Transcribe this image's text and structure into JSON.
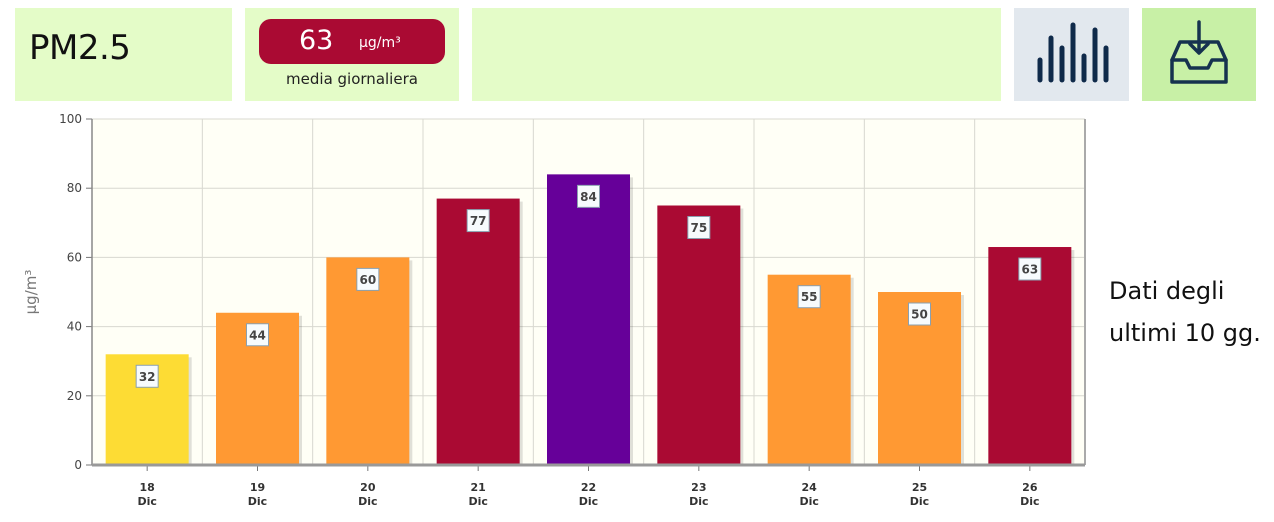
{
  "header": {
    "pollutant": "PM2.5",
    "average_value": "63",
    "average_unit": "µg/m³",
    "average_label": "media giornaliera",
    "chart_button_icon": "bar-chart-icon",
    "download_button_icon": "download-tray-icon"
  },
  "side_note": {
    "line1": "Dati degli",
    "line2": "ultimi 10 gg."
  },
  "colors": {
    "panel_bg": "#e4fcc8",
    "badge_red": "#aa0a33",
    "yellow": "#fddc34",
    "orange": "#ff9933",
    "red": "#aa0a33",
    "purple": "#660099"
  },
  "chart_data": {
    "type": "bar",
    "categories": [
      "18 Dic",
      "19 Dic",
      "20 Dic",
      "21 Dic",
      "22 Dic",
      "23 Dic",
      "24 Dic",
      "25 Dic",
      "26 Dic"
    ],
    "category_lines": [
      [
        "18",
        "Dic"
      ],
      [
        "19",
        "Dic"
      ],
      [
        "20",
        "Dic"
      ],
      [
        "21",
        "Dic"
      ],
      [
        "22",
        "Dic"
      ],
      [
        "23",
        "Dic"
      ],
      [
        "24",
        "Dic"
      ],
      [
        "25",
        "Dic"
      ],
      [
        "26",
        "Dic"
      ]
    ],
    "values": [
      32,
      44,
      60,
      77,
      84,
      75,
      55,
      50,
      63
    ],
    "bar_colors": [
      "#fddc34",
      "#ff9933",
      "#ff9933",
      "#aa0a33",
      "#660099",
      "#aa0a33",
      "#ff9933",
      "#ff9933",
      "#aa0a33"
    ],
    "ylabel": "µg/m³",
    "ylim": [
      0,
      100
    ],
    "yticks": [
      0,
      20,
      40,
      60,
      80,
      100
    ],
    "grid": true,
    "data_labels": true
  }
}
